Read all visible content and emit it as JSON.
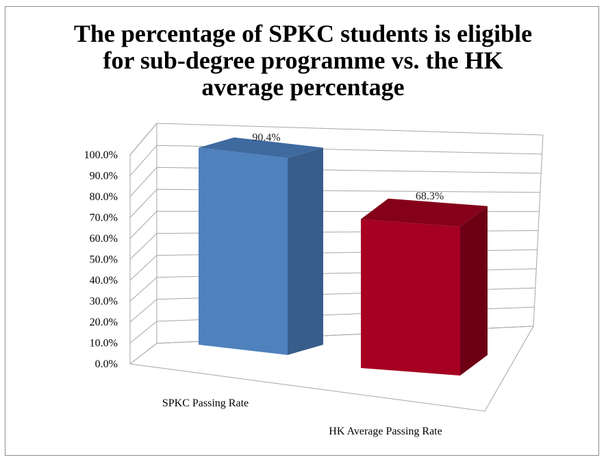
{
  "chart_data": {
    "type": "bar",
    "title": "The percentage of SPKC students is eligible\nfor sub-degree programme vs. the HK\naverage percentage",
    "categories": [
      "SPKC Passing Rate",
      "HK Average Passing Rate"
    ],
    "values": [
      90.4,
      68.3
    ],
    "data_labels": [
      "90.4%",
      "68.3%"
    ],
    "ylim": [
      0,
      100
    ],
    "y_ticks": [
      "0.0%",
      "10.0%",
      "20.0%",
      "30.0%",
      "40.0%",
      "50.0%",
      "60.0%",
      "70.0%",
      "80.0%",
      "90.0%",
      "100.0%"
    ],
    "colors": {
      "bars": [
        "#4f81bd",
        "#a50021"
      ],
      "bar_sides": [
        "#385d8a",
        "#6e0016"
      ],
      "bar_tops": [
        "#3e6aa0",
        "#850019"
      ],
      "grid": "#a6a6a6"
    },
    "grid": true,
    "legend": "none",
    "style": "3d-column"
  }
}
